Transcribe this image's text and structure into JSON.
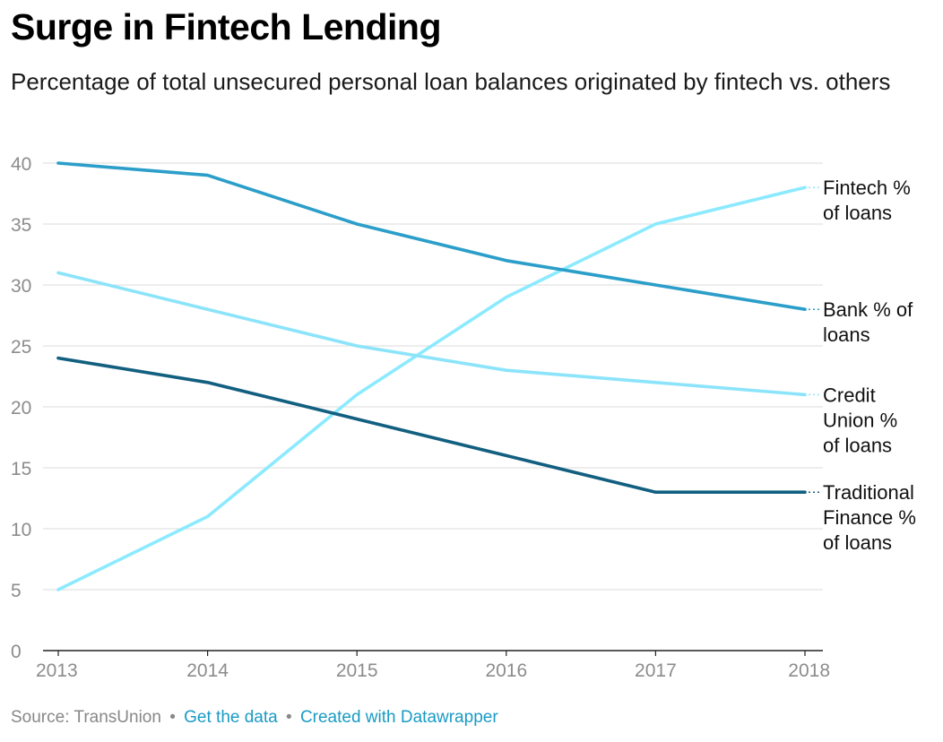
{
  "title": "Surge in Fintech Lending",
  "subtitle": "Percentage of total unsecured personal loan balances originated by fintech vs. others",
  "footer": {
    "source": "Source: TransUnion",
    "separator": "•",
    "get_data": "Get the data",
    "created_with": "Created with Datawrapper"
  },
  "chart_data": {
    "type": "line",
    "x": [
      "2013",
      "2014",
      "2015",
      "2016",
      "2017",
      "2018"
    ],
    "ylim": [
      0,
      40
    ],
    "yticks": [
      0,
      5,
      10,
      15,
      20,
      25,
      30,
      35,
      40
    ],
    "grid": true,
    "legend": "direct labels at right end of lines",
    "series": [
      {
        "name": "Fintech % of loans",
        "label_lines": [
          "Fintech %",
          "of loans"
        ],
        "values": [
          5,
          11,
          21,
          29,
          35,
          38
        ],
        "color": "#8ceaff"
      },
      {
        "name": "Bank % of loans",
        "label_lines": [
          "Bank % of",
          "loans"
        ],
        "values": [
          40,
          39,
          35,
          32,
          30,
          28
        ],
        "color": "#2b9ec9"
      },
      {
        "name": "Credit Union % of loans",
        "label_lines": [
          "Credit",
          "Union %",
          "of loans"
        ],
        "values": [
          31,
          28,
          25,
          23,
          22,
          21
        ],
        "color": "#8ce4fa"
      },
      {
        "name": "Traditional Finance % of loans",
        "label_lines": [
          "Traditional",
          "Finance %",
          "of loans"
        ],
        "values": [
          24,
          22,
          19,
          16,
          13,
          13
        ],
        "color": "#125f80"
      }
    ]
  }
}
